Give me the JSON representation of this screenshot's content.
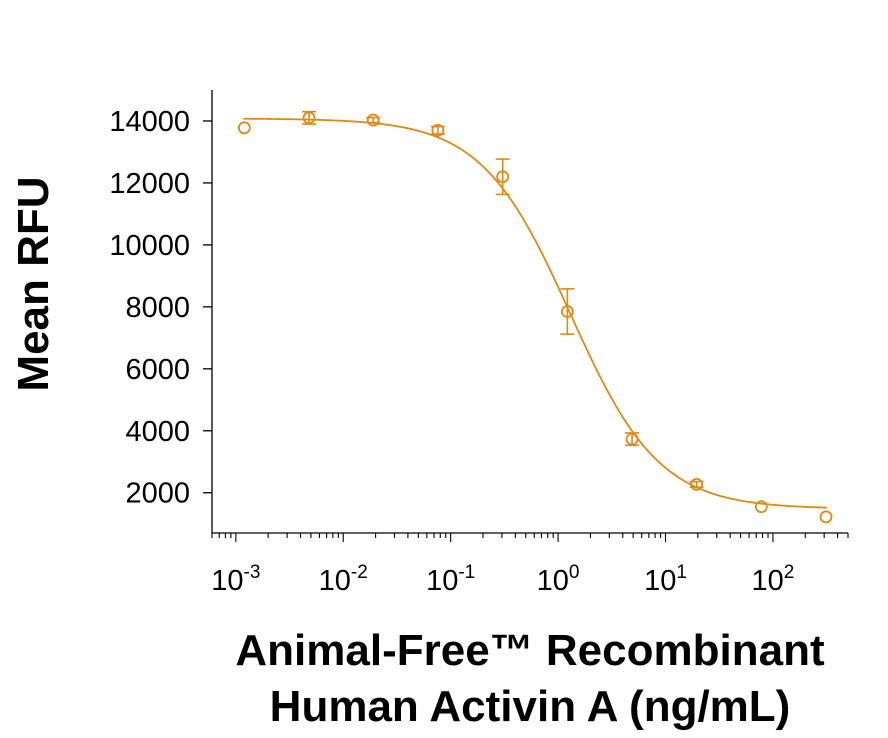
{
  "chart_data": {
    "type": "scatter",
    "title": "",
    "xlabel_lines": [
      "Animal-Free™ Recombinant",
      "Human Activin A (ng/mL)"
    ],
    "ylabel": "Mean RFU",
    "x_scale": "log",
    "xlim": [
      0.0006,
      500
    ],
    "ylim": [
      700,
      15000
    ],
    "y_ticks": [
      2000,
      4000,
      6000,
      8000,
      10000,
      12000,
      14000
    ],
    "x_ticks": [
      {
        "value": 0.001,
        "base": "10",
        "exp": "-3"
      },
      {
        "value": 0.01,
        "base": "10",
        "exp": "-2"
      },
      {
        "value": 0.1,
        "base": "10",
        "exp": "-1"
      },
      {
        "value": 1,
        "base": "10",
        "exp": "0"
      },
      {
        "value": 10,
        "base": "10",
        "exp": "1"
      },
      {
        "value": 100,
        "base": "10",
        "exp": "2"
      }
    ],
    "grid": false,
    "legend": "none",
    "color": "#e08a14",
    "points": [
      {
        "x": 0.0012,
        "y": 13780,
        "err": 0
      },
      {
        "x": 0.0048,
        "y": 14100,
        "err": 200
      },
      {
        "x": 0.019,
        "y": 14030,
        "err": 80
      },
      {
        "x": 0.076,
        "y": 13700,
        "err": 120
      },
      {
        "x": 0.305,
        "y": 12200,
        "err": 570
      },
      {
        "x": 1.22,
        "y": 7850,
        "err": 730
      },
      {
        "x": 4.88,
        "y": 3730,
        "err": 200
      },
      {
        "x": 19.5,
        "y": 2270,
        "err": 90
      },
      {
        "x": 78,
        "y": 1550,
        "err": 0
      },
      {
        "x": 312,
        "y": 1220,
        "err": 0
      }
    ],
    "fit": {
      "type": "4PL",
      "top": 14080,
      "bottom": 1480,
      "ec50": 1.3,
      "hill": 1.05
    }
  }
}
